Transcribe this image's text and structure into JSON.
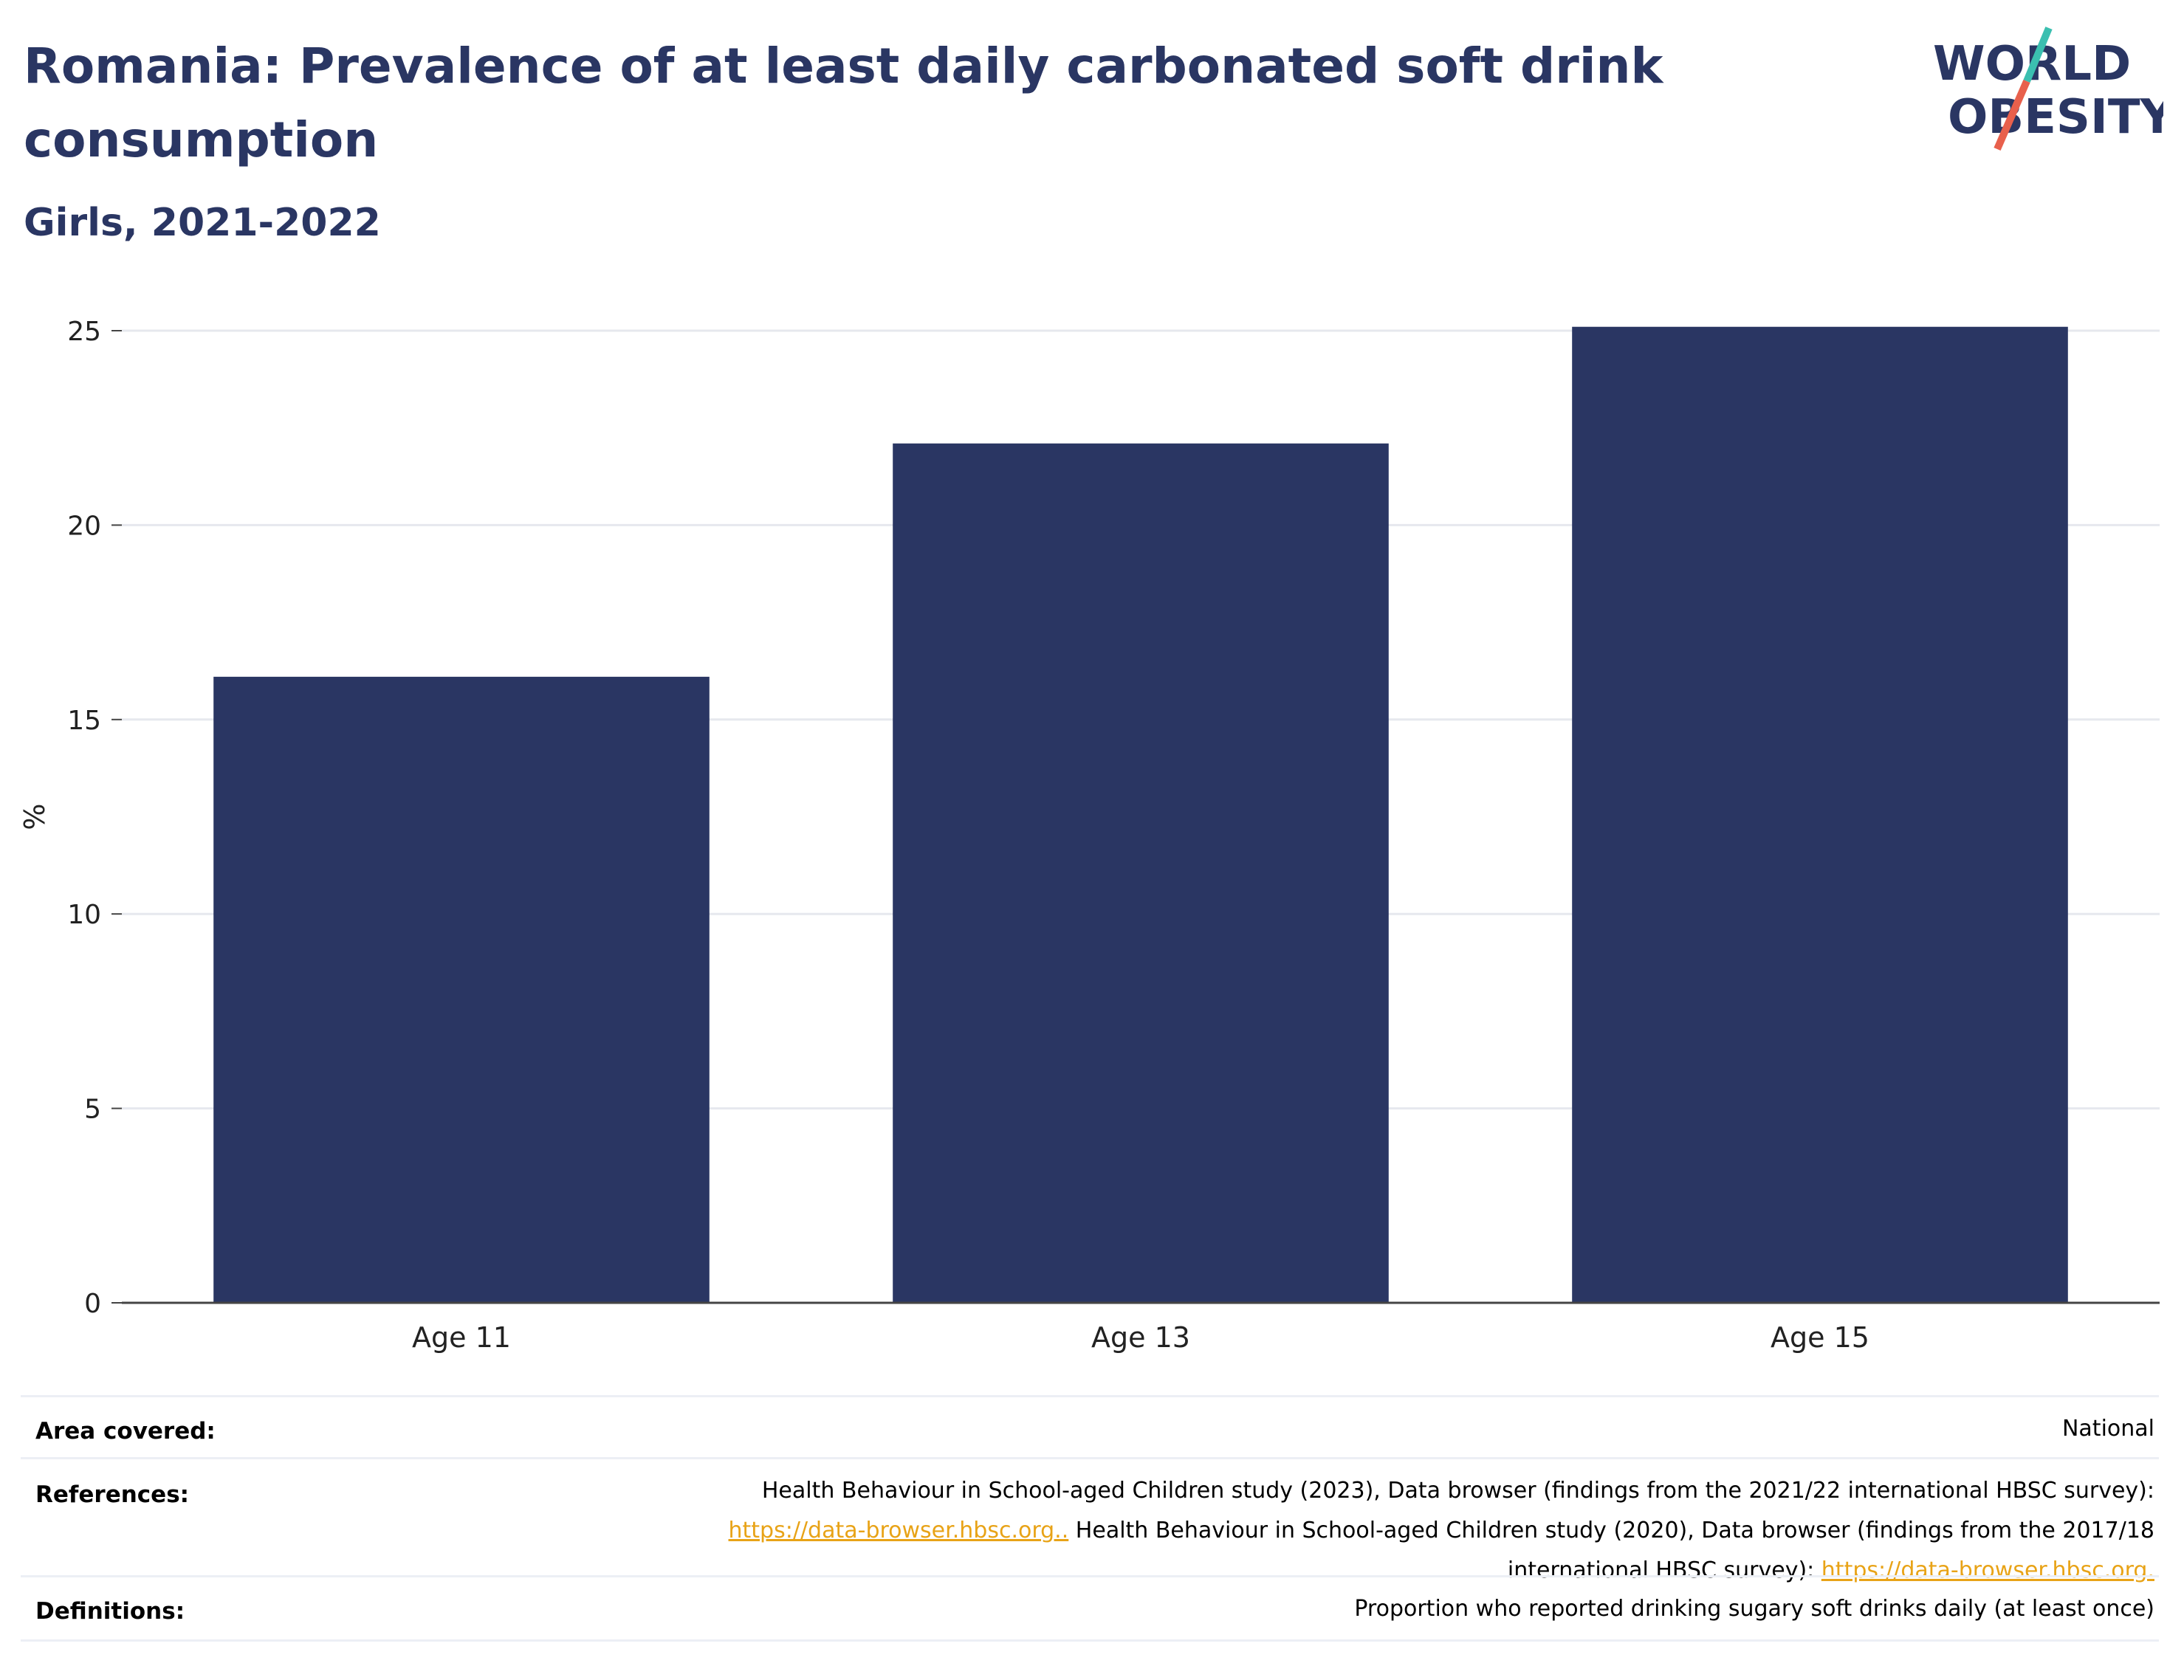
{
  "header": {
    "title": "Romania: Prevalence of at least daily carbonated soft drink consumption",
    "subtitle": "Girls, 2021-2022"
  },
  "logo": {
    "line1": "WORLD",
    "line2": "OBESITY",
    "colors": {
      "text": "#2a3663",
      "slash_top": "#3bbfb0",
      "slash_bottom": "#e8604c"
    }
  },
  "chart_data": {
    "type": "bar",
    "categories": [
      "Age 11",
      "Age 13",
      "Age 15"
    ],
    "values": [
      16.1,
      22.1,
      25.1
    ],
    "ylabel": "%",
    "ylim": [
      0,
      25
    ],
    "yticks": [
      0,
      5,
      10,
      15,
      20,
      25
    ],
    "grid": true,
    "bar_color": "#2a3663"
  },
  "meta": {
    "area": {
      "label": "Area covered:",
      "value": "National"
    },
    "references": {
      "label": "References:",
      "line1": "Health Behaviour in School-aged Children study (2023), Data browser (findings from the 2021/22 international HBSC survey):",
      "link1": "https://data-browser.hbsc.org..",
      "line2": " Health Behaviour in School-aged Children study (2020), Data browser (findings from the 2017/18",
      "line3": "international HBSC survey): ",
      "link2": "https://data-browser.hbsc.org."
    },
    "definitions": {
      "label": "Definitions:",
      "value": "Proportion who reported drinking sugary soft drinks daily (at least once)"
    }
  }
}
